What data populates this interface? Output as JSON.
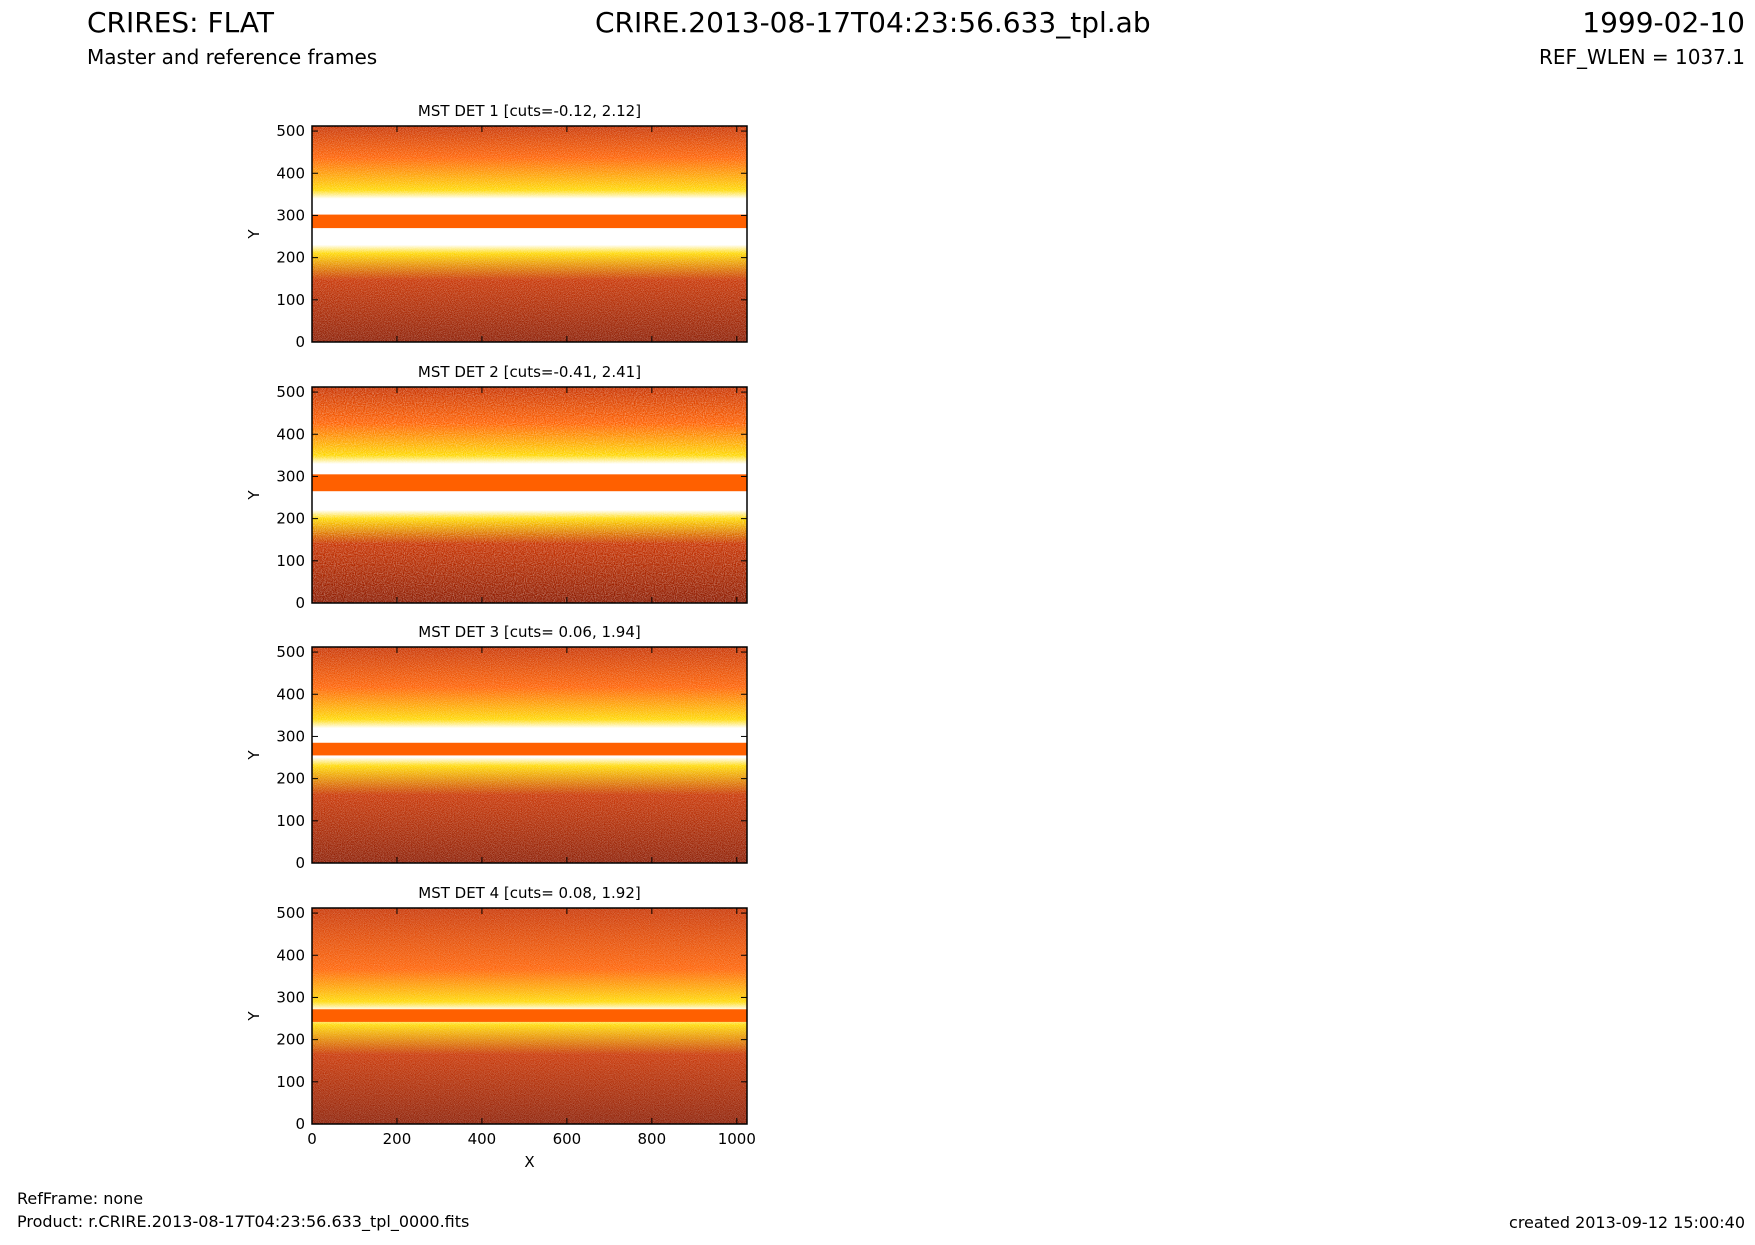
{
  "header": {
    "title_left": "CRIRES: FLAT",
    "subtitle_left": "Master and reference frames",
    "title_center": "CRIRE.2013-08-17T04:23:56.633_tpl.ab",
    "title_right": "1999-02-10",
    "subtitle_right": "REF_WLEN = 1037.1"
  },
  "footer": {
    "refframe": "RefFrame: none",
    "product": "Product: r.CRIRE.2013-08-17T04:23:56.633_tpl_0000.fits",
    "created": "created 2013-09-12 15:00:40"
  },
  "colors": {
    "dark": "#8b1a00",
    "red": "#c83200",
    "orange": "#ff6000",
    "yellow": "#ffd800",
    "white": "#ffffff",
    "band": "#ff6000",
    "frame": "#000000"
  },
  "chart_data": [
    {
      "type": "heatmap",
      "title": "MST DET 1 [cuts=-0.12, 2.12]",
      "xlabel": "",
      "ylabel": "Y",
      "xlim": [
        0,
        1024
      ],
      "ylim": [
        0,
        512
      ],
      "xticks": [],
      "yticks": [
        0,
        100,
        200,
        300,
        400,
        500
      ],
      "cuts": [
        -0.12,
        2.12
      ],
      "band_y": [
        270,
        302
      ],
      "bright_zone_y": [
        210,
        360
      ],
      "noise_level": "high"
    },
    {
      "type": "heatmap",
      "title": "MST DET 2 [cuts=-0.41, 2.41]",
      "xlabel": "",
      "ylabel": "Y",
      "xlim": [
        0,
        1024
      ],
      "ylim": [
        0,
        512
      ],
      "xticks": [],
      "yticks": [
        0,
        100,
        200,
        300,
        400,
        500
      ],
      "cuts": [
        -0.41,
        2.41
      ],
      "band_y": [
        265,
        305
      ],
      "bright_zone_y": [
        200,
        350
      ],
      "noise_level": "medium"
    },
    {
      "type": "heatmap",
      "title": "MST DET 3 [cuts= 0.06, 1.94]",
      "xlabel": "",
      "ylabel": "Y",
      "xlim": [
        0,
        1024
      ],
      "ylim": [
        0,
        512
      ],
      "xticks": [],
      "yticks": [
        0,
        100,
        200,
        300,
        400,
        500
      ],
      "cuts": [
        0.06,
        1.94
      ],
      "band_y": [
        255,
        285
      ],
      "bright_zone_y": [
        230,
        340
      ],
      "noise_level": "high"
    },
    {
      "type": "heatmap",
      "title": "MST DET 4 [cuts= 0.08, 1.92]",
      "xlabel": "X",
      "ylabel": "Y",
      "xlim": [
        0,
        1024
      ],
      "ylim": [
        0,
        512
      ],
      "xticks": [
        0,
        200,
        400,
        600,
        800,
        1000
      ],
      "yticks": [
        0,
        100,
        200,
        300,
        400,
        500
      ],
      "cuts": [
        0.08,
        1.92
      ],
      "band_y": [
        242,
        272
      ],
      "bright_zone_y": [
        235,
        290
      ],
      "noise_level": "very-high"
    }
  ]
}
